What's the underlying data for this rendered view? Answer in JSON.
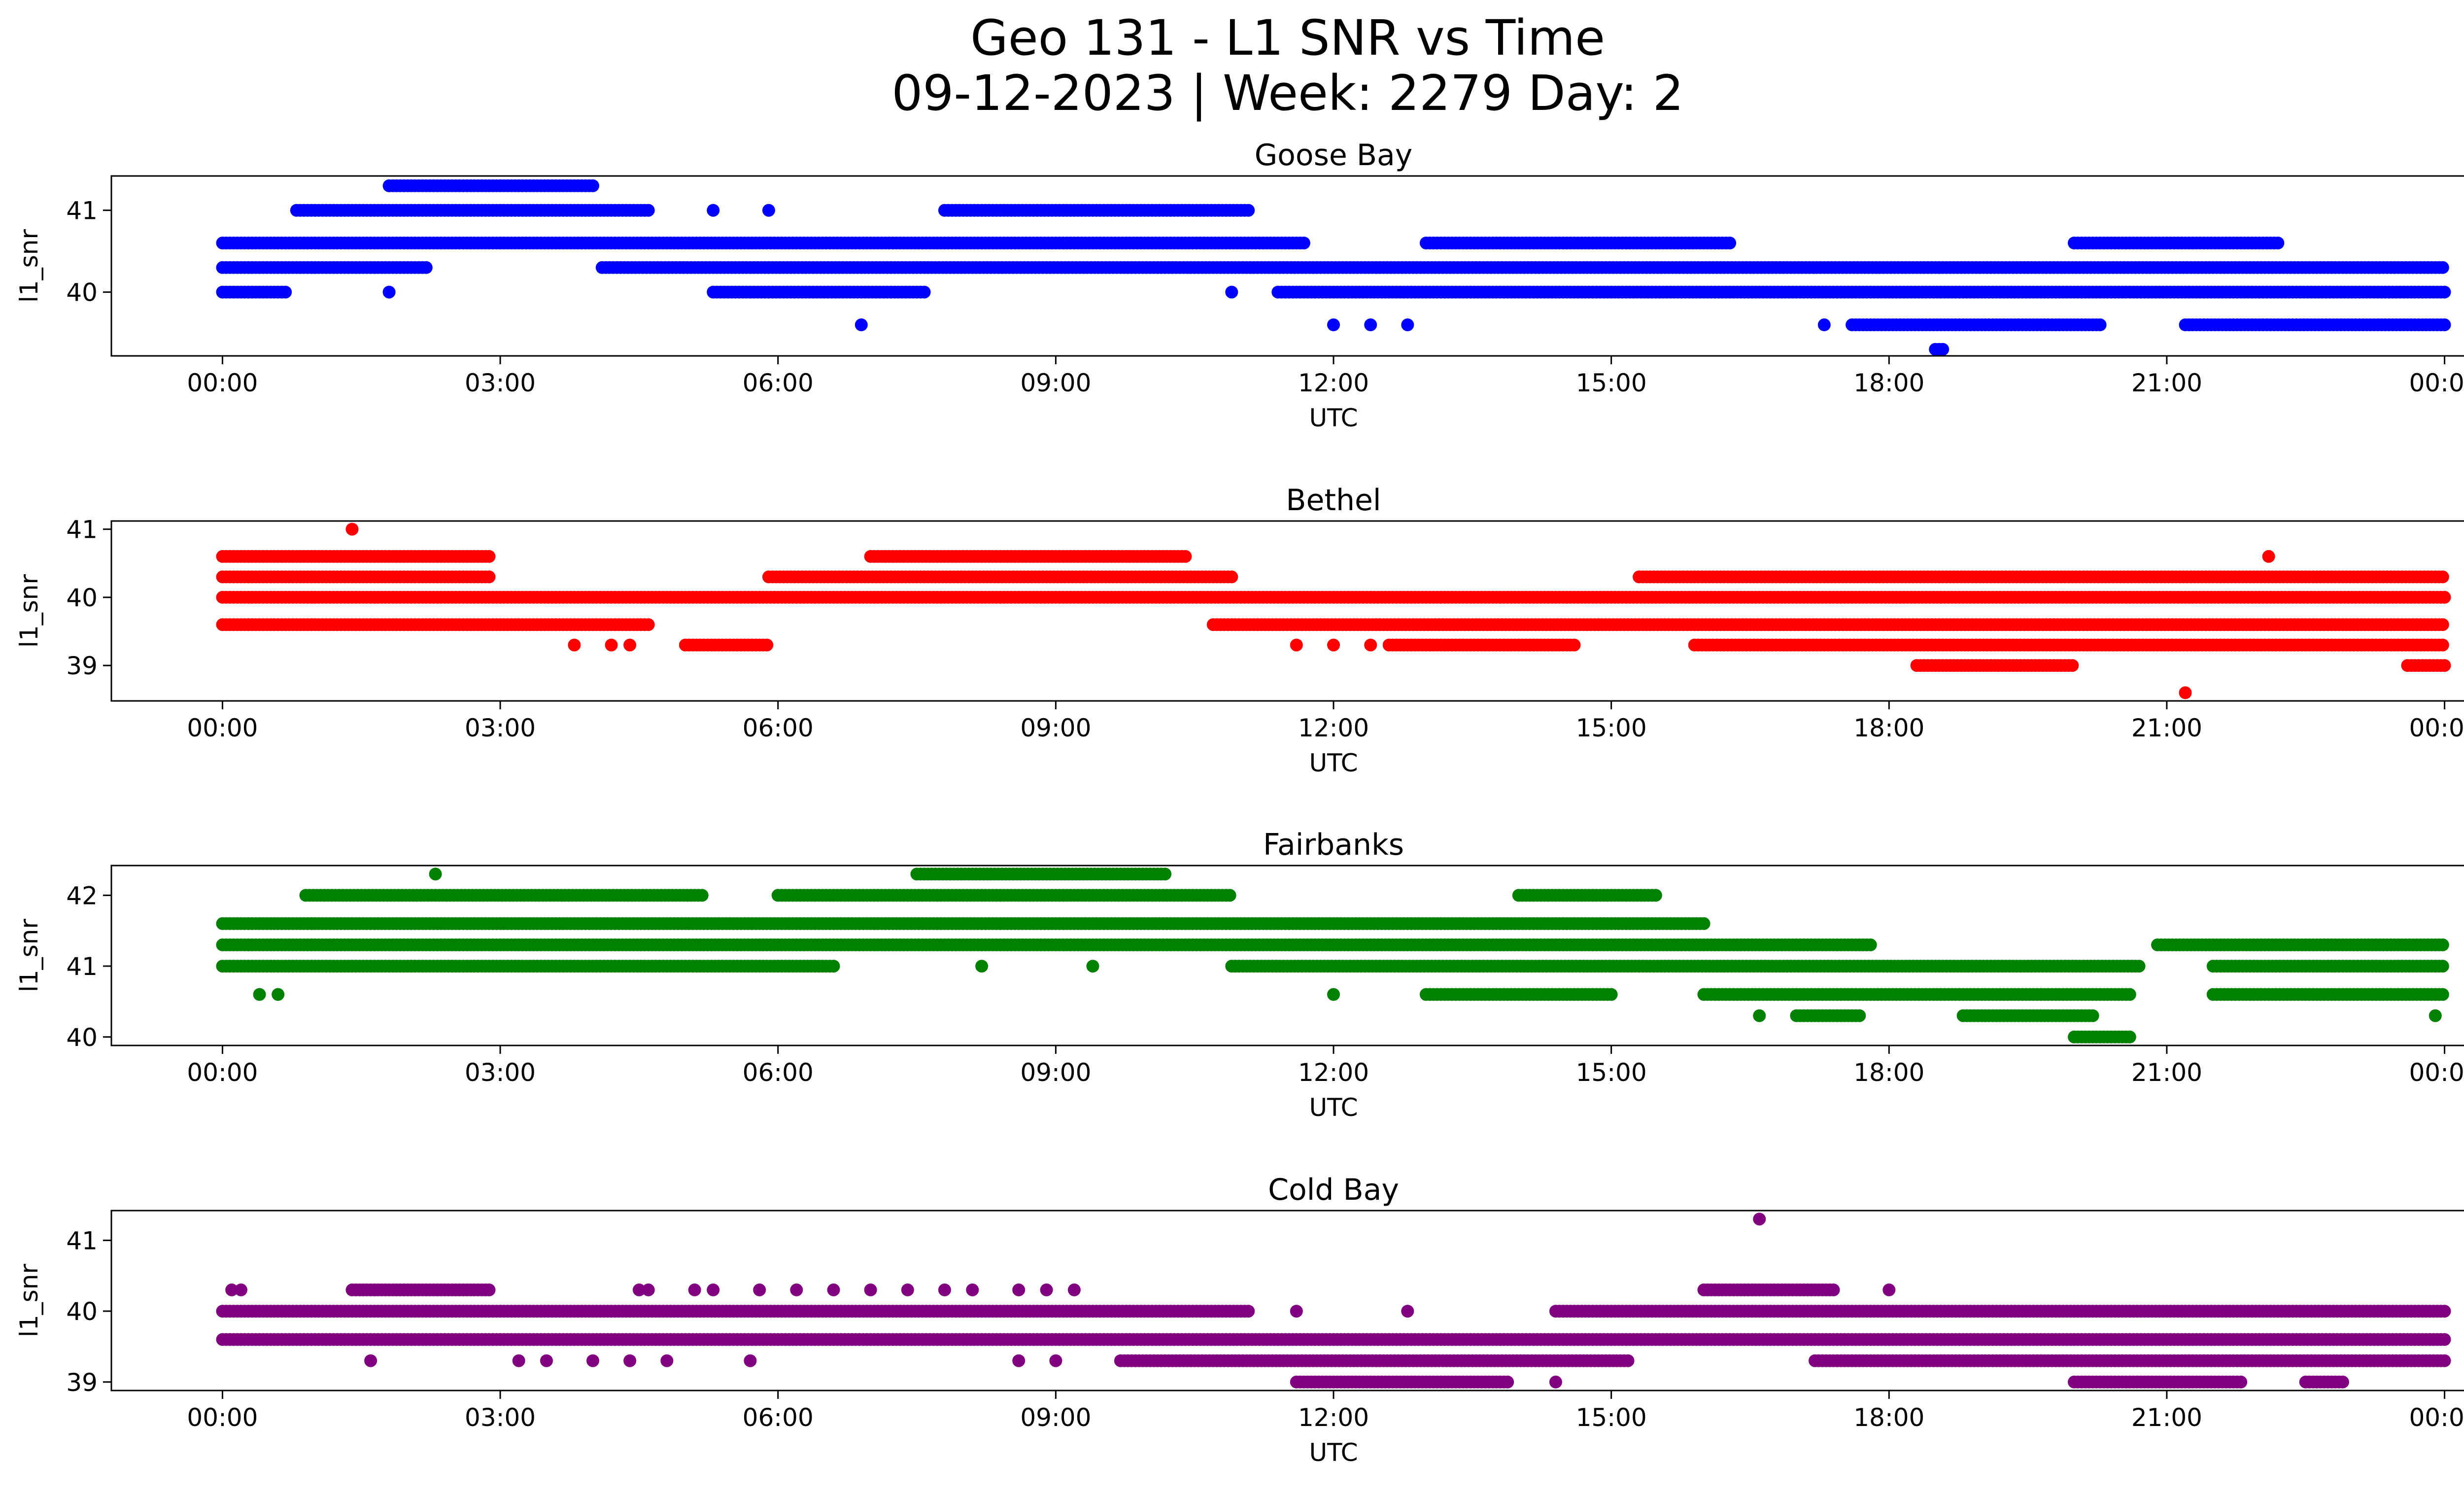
{
  "figure": {
    "title_line1": "Geo 131 - L1 SNR vs Time",
    "title_line2": "09-12-2023 | Week: 2279 Day: 2"
  },
  "chart_data": [
    {
      "type": "scatter",
      "title": "Goose Bay",
      "xlabel": "UTC",
      "ylabel": "l1_snr",
      "color": "#0000ff",
      "xticks": [
        "00:00",
        "03:00",
        "06:00",
        "09:00",
        "12:00",
        "15:00",
        "18:00",
        "21:00",
        "00:00"
      ],
      "xlim_hours": [
        -1.2,
        25.2
      ],
      "ylim": [
        39.22,
        41.42
      ],
      "yticks": [
        40,
        41
      ],
      "series": [
        {
          "hours": [
            [
              0.0,
              11.7
            ]
          ],
          "y": 40.6
        },
        {
          "hours": [
            [
              0.0,
              2.2
            ],
            [
              4.1,
              24.0
            ]
          ],
          "y": 40.3
        },
        {
          "hours": [
            [
              0.0,
              0.7
            ],
            [
              5.3,
              7.6
            ],
            [
              11.4,
              24.0
            ]
          ],
          "y": 40.0
        },
        {
          "hours": [
            [
              0.8,
              4.6
            ],
            [
              7.8,
              11.1
            ]
          ],
          "y": 41.0
        },
        {
          "hours": [
            [
              13.0,
              16.3
            ],
            [
              20.0,
              22.2
            ]
          ],
          "y": 40.6
        },
        {
          "hours": [
            [
              17.6,
              20.3
            ],
            [
              21.2,
              24.0
            ]
          ],
          "y": 39.6
        },
        {
          "hours": [
            [
              1.8,
              4.0
            ]
          ],
          "y": 41.3
        },
        {
          "hours": [
            [
              18.5,
              18.6
            ]
          ],
          "y": 39.3
        },
        {
          "hours": [
            6.9,
            12.0,
            12.4,
            12.8,
            17.3
          ],
          "y": 39.6
        },
        {
          "hours": [
            1.8,
            10.9
          ],
          "y": 40.0
        },
        {
          "hours": [
            5.3,
            5.9
          ],
          "y": 41.0
        }
      ]
    },
    {
      "type": "scatter",
      "title": "Bethel",
      "xlabel": "UTC",
      "ylabel": "l1_snr",
      "color": "#ff0000",
      "xticks": [
        "00:00",
        "03:00",
        "06:00",
        "09:00",
        "12:00",
        "15:00",
        "18:00",
        "21:00",
        "00:00"
      ],
      "xlim_hours": [
        -1.2,
        25.2
      ],
      "ylim": [
        38.48,
        41.12
      ],
      "yticks": [
        39,
        40,
        41
      ],
      "series": [
        {
          "hours": [
            [
              0.0,
              24.0
            ]
          ],
          "y": 40.0
        },
        {
          "hours": [
            [
              0.0,
              2.9
            ],
            [
              5.9,
              10.9
            ],
            [
              15.3,
              24.0
            ]
          ],
          "y": 40.3
        },
        {
          "hours": [
            [
              0.0,
              4.6
            ],
            [
              10.7,
              24.0
            ]
          ],
          "y": 39.6
        },
        {
          "hours": [
            [
              0.0,
              2.9
            ],
            [
              7.0,
              10.4
            ]
          ],
          "y": 40.6
        },
        {
          "hours": [
            [
              5.0,
              5.9
            ],
            [
              12.6,
              14.6
            ],
            [
              15.9,
              24.0
            ]
          ],
          "y": 39.3
        },
        {
          "hours": [
            [
              18.3,
              20.0
            ],
            [
              23.6,
              24.0
            ]
          ],
          "y": 39.0
        },
        {
          "hours": [
            1.4
          ],
          "y": 41.0
        },
        {
          "hours": [
            21.2
          ],
          "y": 38.6
        },
        {
          "hours": [
            22.1
          ],
          "y": 40.6
        },
        {
          "hours": [
            3.8,
            4.2,
            4.4,
            11.6,
            12.0,
            12.4
          ],
          "y": 39.3
        }
      ]
    },
    {
      "type": "scatter",
      "title": "Fairbanks",
      "xlabel": "UTC",
      "ylabel": "l1_snr",
      "color": "#008000",
      "xticks": [
        "00:00",
        "03:00",
        "06:00",
        "09:00",
        "12:00",
        "15:00",
        "18:00",
        "21:00",
        "00:00"
      ],
      "xlim_hours": [
        -1.2,
        25.2
      ],
      "ylim": [
        39.88,
        42.42
      ],
      "yticks": [
        40,
        41,
        42
      ],
      "series": [
        {
          "hours": [
            [
              0.0,
              16.0
            ]
          ],
          "y": 41.6
        },
        {
          "hours": [
            [
              0.0,
              17.8
            ],
            [
              20.9,
              24.0
            ]
          ],
          "y": 41.3
        },
        {
          "hours": [
            [
              0.0,
              6.6
            ],
            [
              10.9,
              20.7
            ],
            [
              21.5,
              24.0
            ]
          ],
          "y": 41.0
        },
        {
          "hours": [
            [
              0.9,
              5.2
            ],
            [
              6.0,
              10.9
            ],
            [
              14.0,
              15.5
            ]
          ],
          "y": 42.0
        },
        {
          "hours": [
            [
              13.0,
              15.0
            ],
            [
              16.0,
              20.6
            ],
            [
              21.5,
              24.0
            ]
          ],
          "y": 40.6
        },
        {
          "hours": [
            [
              17.0,
              17.7
            ],
            [
              18.8,
              20.2
            ]
          ],
          "y": 40.3
        },
        {
          "hours": [
            [
              7.5,
              10.2
            ]
          ],
          "y": 42.3
        },
        {
          "hours": [
            [
              20.0,
              20.6
            ]
          ],
          "y": 40.0
        },
        {
          "hours": [
            0.4,
            0.6,
            12.0
          ],
          "y": 40.6
        },
        {
          "hours": [
            2.3
          ],
          "y": 42.3
        },
        {
          "hours": [
            8.2,
            9.4
          ],
          "y": 41.0
        },
        {
          "hours": [
            16.6,
            23.9
          ],
          "y": 40.3
        }
      ]
    },
    {
      "type": "scatter",
      "title": "Cold Bay",
      "xlabel": "UTC",
      "ylabel": "l1_snr",
      "color": "#800080",
      "xticks": [
        "00:00",
        "03:00",
        "06:00",
        "09:00",
        "12:00",
        "15:00",
        "18:00",
        "21:00",
        "00:00"
      ],
      "xlim_hours": [
        -1.2,
        25.2
      ],
      "ylim": [
        38.88,
        41.42
      ],
      "yticks": [
        39,
        40,
        41
      ],
      "series": [
        {
          "hours": [
            [
              0.0,
              11.1
            ],
            [
              14.4,
              24.0
            ]
          ],
          "y": 40.0
        },
        {
          "hours": [
            [
              0.0,
              24.0
            ]
          ],
          "y": 39.6
        },
        {
          "hours": [
            [
              9.7,
              15.2
            ],
            [
              17.2,
              24.0
            ]
          ],
          "y": 39.3
        },
        {
          "hours": [
            [
              1.4,
              2.9
            ],
            [
              16.0,
              17.4
            ]
          ],
          "y": 40.3
        },
        {
          "hours": [
            [
              11.6,
              13.9
            ],
            [
              20.0,
              21.8
            ],
            [
              22.5,
              22.9
            ]
          ],
          "y": 39.0
        },
        {
          "hours": [
            16.6
          ],
          "y": 41.3
        },
        {
          "hours": [
            0.1,
            0.2,
            4.5,
            4.6,
            5.1,
            5.3,
            5.8,
            6.2,
            6.6,
            7.0,
            7.4,
            7.8,
            8.1,
            8.6,
            8.9,
            9.2,
            18.0
          ],
          "y": 40.3
        },
        {
          "hours": [
            1.6,
            3.2,
            3.5,
            4.0,
            4.4,
            4.8,
            5.7,
            8.6,
            9.0
          ],
          "y": 39.3
        },
        {
          "hours": [
            11.6,
            12.8
          ],
          "y": 40.0
        },
        {
          "hours": [
            14.4
          ],
          "y": 39.0
        }
      ]
    }
  ]
}
